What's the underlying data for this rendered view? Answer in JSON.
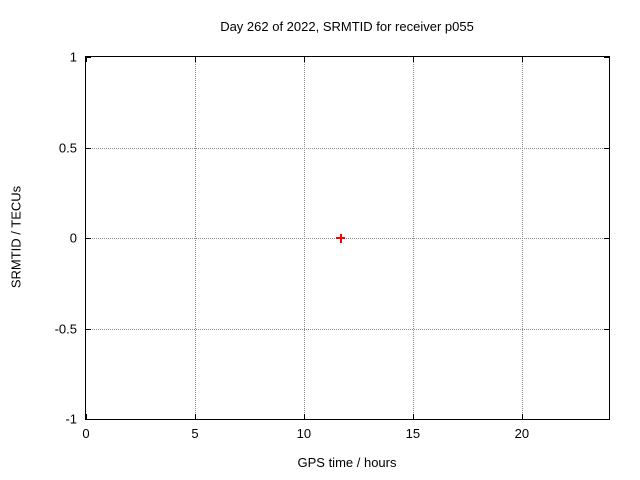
{
  "chart_data": {
    "type": "scatter",
    "title": "Day 262 of 2022, SRMTID for receiver p055",
    "xlabel": "GPS time / hours",
    "ylabel": "SRMTID / TECUs",
    "xlim": [
      0,
      24
    ],
    "ylim": [
      -1,
      1
    ],
    "xticks": [
      {
        "value": 0,
        "label": "0"
      },
      {
        "value": 5,
        "label": "5"
      },
      {
        "value": 10,
        "label": "10"
      },
      {
        "value": 15,
        "label": "15"
      },
      {
        "value": 20,
        "label": "20"
      }
    ],
    "yticks": [
      {
        "value": 1,
        "label": "1"
      },
      {
        "value": 0.5,
        "label": "0.5"
      },
      {
        "value": 0,
        "label": "0"
      },
      {
        "value": -0.5,
        "label": "-0.5"
      },
      {
        "value": -1,
        "label": "-1"
      }
    ],
    "grid": true,
    "legend": false,
    "series": [
      {
        "name": "SRMTID",
        "marker": "plus",
        "color": "#ff0000",
        "points": [
          {
            "x": 11.7,
            "y": 0.0
          }
        ]
      }
    ]
  },
  "colors": {
    "background": "#ffffff",
    "axis": "#000000",
    "grid": "#8a8a8a",
    "text": "#000000",
    "marker": "#ff0000"
  }
}
